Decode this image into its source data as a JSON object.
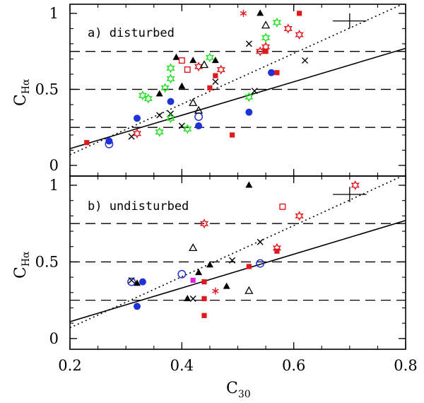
{
  "chart_data": [
    {
      "type": "scatter",
      "panel_label": "a) disturbed",
      "xlabel": "",
      "ylabel_main": "C",
      "ylabel_sub": "Hα",
      "xlim": [
        0.2,
        0.8
      ],
      "ylim": [
        -0.07,
        1.06
      ],
      "x_ticks": [
        0.2,
        0.4,
        0.6,
        0.8
      ],
      "y_ticks": [
        0,
        0.5,
        1
      ],
      "y_tick_labels": [
        "0",
        "0.5",
        "1"
      ],
      "reference_lines": {
        "dashed": [
          0.25,
          0.5,
          0.75
        ],
        "solid_fit": {
          "x": [
            0.2,
            0.8
          ],
          "y": [
            0.11,
            0.77
          ]
        },
        "dotted_fit": {
          "x": [
            0.2,
            0.8
          ],
          "y": [
            0.07,
            1.07
          ]
        }
      },
      "error_bar": {
        "x": 0.7,
        "y": 0.95,
        "dx": 0.03,
        "dy": 0.05
      },
      "colors": {
        "black": "#000000",
        "red": "#e0191f",
        "blue": "#1f32d8",
        "green": "#22e01f",
        "magenta": "#e020e0"
      },
      "points": [
        {
          "x": 0.23,
          "y": 0.15,
          "marker": "square",
          "color": "red"
        },
        {
          "x": 0.27,
          "y": 0.16,
          "marker": "circle",
          "color": "blue"
        },
        {
          "x": 0.27,
          "y": 0.14,
          "marker": "open-circle",
          "color": "blue"
        },
        {
          "x": 0.31,
          "y": 0.19,
          "marker": "cross",
          "color": "black"
        },
        {
          "x": 0.32,
          "y": 0.21,
          "marker": "open-star",
          "color": "red"
        },
        {
          "x": 0.32,
          "y": 0.31,
          "marker": "circle",
          "color": "blue"
        },
        {
          "x": 0.33,
          "y": 0.46,
          "marker": "open-star",
          "color": "green"
        },
        {
          "x": 0.34,
          "y": 0.44,
          "marker": "open-star",
          "color": "green"
        },
        {
          "x": 0.36,
          "y": 0.47,
          "marker": "triangle",
          "color": "black"
        },
        {
          "x": 0.36,
          "y": 0.33,
          "marker": "cross",
          "color": "black"
        },
        {
          "x": 0.36,
          "y": 0.22,
          "marker": "open-star",
          "color": "green"
        },
        {
          "x": 0.37,
          "y": 0.51,
          "marker": "open-star",
          "color": "green"
        },
        {
          "x": 0.38,
          "y": 0.42,
          "marker": "circle",
          "color": "blue"
        },
        {
          "x": 0.38,
          "y": 0.34,
          "marker": "cross",
          "color": "black"
        },
        {
          "x": 0.38,
          "y": 0.31,
          "marker": "open-star",
          "color": "green"
        },
        {
          "x": 0.38,
          "y": 0.57,
          "marker": "open-star",
          "color": "green"
        },
        {
          "x": 0.38,
          "y": 0.64,
          "marker": "open-star",
          "color": "green"
        },
        {
          "x": 0.39,
          "y": 0.71,
          "marker": "triangle",
          "color": "black"
        },
        {
          "x": 0.4,
          "y": 0.52,
          "marker": "triangle",
          "color": "black"
        },
        {
          "x": 0.4,
          "y": 0.26,
          "marker": "cross",
          "color": "black"
        },
        {
          "x": 0.4,
          "y": 0.69,
          "marker": "open-square",
          "color": "red"
        },
        {
          "x": 0.41,
          "y": 0.24,
          "marker": "open-star",
          "color": "green"
        },
        {
          "x": 0.41,
          "y": 0.63,
          "marker": "open-square",
          "color": "red"
        },
        {
          "x": 0.42,
          "y": 0.69,
          "marker": "triangle",
          "color": "black"
        },
        {
          "x": 0.42,
          "y": 0.41,
          "marker": "open-triangle",
          "color": "black"
        },
        {
          "x": 0.43,
          "y": 0.26,
          "marker": "circle",
          "color": "blue"
        },
        {
          "x": 0.43,
          "y": 0.32,
          "marker": "open-circle",
          "color": "blue"
        },
        {
          "x": 0.43,
          "y": 0.36,
          "marker": "open-triangle",
          "color": "black"
        },
        {
          "x": 0.43,
          "y": 0.65,
          "marker": "open-star",
          "color": "red"
        },
        {
          "x": 0.44,
          "y": 0.66,
          "marker": "open-triangle",
          "color": "black"
        },
        {
          "x": 0.45,
          "y": 0.51,
          "marker": "square",
          "color": "red"
        },
        {
          "x": 0.45,
          "y": 0.71,
          "marker": "open-star",
          "color": "green"
        },
        {
          "x": 0.46,
          "y": 0.69,
          "marker": "triangle",
          "color": "black"
        },
        {
          "x": 0.46,
          "y": 0.59,
          "marker": "square",
          "color": "red"
        },
        {
          "x": 0.46,
          "y": 0.55,
          "marker": "cross",
          "color": "black"
        },
        {
          "x": 0.47,
          "y": 0.63,
          "marker": "open-star",
          "color": "red"
        },
        {
          "x": 0.49,
          "y": 0.2,
          "marker": "square",
          "color": "red"
        },
        {
          "x": 0.51,
          "y": 1.0,
          "marker": "asterisk",
          "color": "red"
        },
        {
          "x": 0.52,
          "y": 0.8,
          "marker": "cross",
          "color": "black"
        },
        {
          "x": 0.52,
          "y": 0.45,
          "marker": "open-star",
          "color": "green"
        },
        {
          "x": 0.52,
          "y": 0.35,
          "marker": "circle",
          "color": "blue"
        },
        {
          "x": 0.53,
          "y": 0.49,
          "marker": "cross",
          "color": "black"
        },
        {
          "x": 0.54,
          "y": 1.0,
          "marker": "triangle",
          "color": "black"
        },
        {
          "x": 0.54,
          "y": 0.75,
          "marker": "open-star",
          "color": "red"
        },
        {
          "x": 0.55,
          "y": 0.92,
          "marker": "open-triangle",
          "color": "black"
        },
        {
          "x": 0.55,
          "y": 0.84,
          "marker": "open-star",
          "color": "green"
        },
        {
          "x": 0.55,
          "y": 0.78,
          "marker": "open-star",
          "color": "red"
        },
        {
          "x": 0.55,
          "y": 0.75,
          "marker": "square",
          "color": "red"
        },
        {
          "x": 0.56,
          "y": 0.61,
          "marker": "circle",
          "color": "blue"
        },
        {
          "x": 0.57,
          "y": 0.61,
          "marker": "square",
          "color": "red"
        },
        {
          "x": 0.57,
          "y": 0.94,
          "marker": "open-star",
          "color": "green"
        },
        {
          "x": 0.59,
          "y": 0.9,
          "marker": "open-star",
          "color": "red"
        },
        {
          "x": 0.61,
          "y": 1.0,
          "marker": "square",
          "color": "red"
        },
        {
          "x": 0.61,
          "y": 0.86,
          "marker": "open-star",
          "color": "red"
        },
        {
          "x": 0.62,
          "y": 0.69,
          "marker": "cross",
          "color": "black"
        }
      ]
    },
    {
      "type": "scatter",
      "panel_label": "b) undisturbed",
      "xlabel_main": "C",
      "xlabel_sub": "30",
      "ylabel_main": "C",
      "ylabel_sub": "Hα",
      "xlim": [
        0.2,
        0.8
      ],
      "ylim": [
        -0.07,
        1.06
      ],
      "x_ticks": [
        0.2,
        0.4,
        0.6,
        0.8
      ],
      "x_tick_labels": [
        "0.2",
        "0.4",
        "0.6",
        "0.8"
      ],
      "y_ticks": [
        0,
        0.5,
        1
      ],
      "y_tick_labels": [
        "0",
        "0.5",
        "1"
      ],
      "reference_lines": {
        "dashed": [
          0.25,
          0.5,
          0.75
        ],
        "solid_fit": {
          "x": [
            0.2,
            0.8
          ],
          "y": [
            0.11,
            0.77
          ]
        },
        "dotted_fit": {
          "x": [
            0.2,
            0.8
          ],
          "y": [
            0.07,
            1.07
          ]
        }
      },
      "error_bar": {
        "x": 0.7,
        "y": 0.94,
        "dx": 0.03,
        "dy": 0.05
      },
      "colors": {
        "black": "#000000",
        "red": "#e0191f",
        "blue": "#1f32d8",
        "green": "#22e01f",
        "magenta": "#e020e0"
      },
      "points": [
        {
          "x": 0.31,
          "y": 0.37,
          "marker": "open-circle",
          "color": "blue"
        },
        {
          "x": 0.31,
          "y": 0.38,
          "marker": "cross",
          "color": "black"
        },
        {
          "x": 0.32,
          "y": 0.36,
          "marker": "triangle",
          "color": "black"
        },
        {
          "x": 0.32,
          "y": 0.21,
          "marker": "circle",
          "color": "blue"
        },
        {
          "x": 0.33,
          "y": 0.37,
          "marker": "circle",
          "color": "blue"
        },
        {
          "x": 0.4,
          "y": 0.42,
          "marker": "open-circle",
          "color": "blue"
        },
        {
          "x": 0.41,
          "y": 0.26,
          "marker": "triangle",
          "color": "black"
        },
        {
          "x": 0.42,
          "y": 0.26,
          "marker": "cross",
          "color": "black"
        },
        {
          "x": 0.42,
          "y": 0.38,
          "marker": "square",
          "color": "magenta"
        },
        {
          "x": 0.42,
          "y": 0.59,
          "marker": "open-triangle",
          "color": "black"
        },
        {
          "x": 0.43,
          "y": 0.43,
          "marker": "triangle",
          "color": "black"
        },
        {
          "x": 0.44,
          "y": 0.75,
          "marker": "open-star",
          "color": "red"
        },
        {
          "x": 0.44,
          "y": 0.37,
          "marker": "square",
          "color": "red"
        },
        {
          "x": 0.44,
          "y": 0.26,
          "marker": "square",
          "color": "red"
        },
        {
          "x": 0.44,
          "y": 0.15,
          "marker": "square",
          "color": "red"
        },
        {
          "x": 0.45,
          "y": 0.48,
          "marker": "triangle",
          "color": "black"
        },
        {
          "x": 0.46,
          "y": 0.31,
          "marker": "asterisk",
          "color": "red"
        },
        {
          "x": 0.48,
          "y": 0.34,
          "marker": "triangle",
          "color": "black"
        },
        {
          "x": 0.49,
          "y": 0.51,
          "marker": "cross",
          "color": "black"
        },
        {
          "x": 0.52,
          "y": 1.0,
          "marker": "triangle",
          "color": "black"
        },
        {
          "x": 0.52,
          "y": 0.47,
          "marker": "square",
          "color": "red"
        },
        {
          "x": 0.52,
          "y": 0.31,
          "marker": "open-triangle",
          "color": "black"
        },
        {
          "x": 0.54,
          "y": 0.63,
          "marker": "cross",
          "color": "black"
        },
        {
          "x": 0.54,
          "y": 0.49,
          "marker": "open-circle",
          "color": "blue"
        },
        {
          "x": 0.57,
          "y": 0.59,
          "marker": "open-star",
          "color": "red"
        },
        {
          "x": 0.57,
          "y": 0.57,
          "marker": "square",
          "color": "red"
        },
        {
          "x": 0.58,
          "y": 0.86,
          "marker": "open-square",
          "color": "red"
        },
        {
          "x": 0.61,
          "y": 0.8,
          "marker": "open-star",
          "color": "red"
        },
        {
          "x": 0.71,
          "y": 1.0,
          "marker": "open-star",
          "color": "red"
        }
      ]
    }
  ]
}
